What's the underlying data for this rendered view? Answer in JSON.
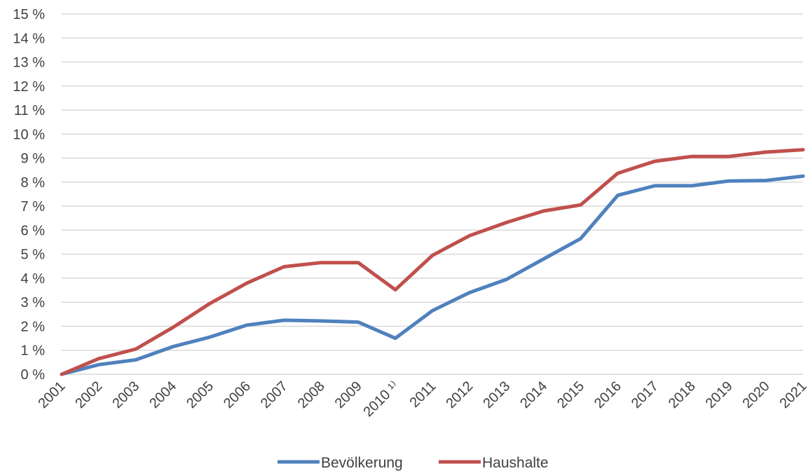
{
  "chart_data": {
    "type": "line",
    "title": "",
    "xlabel": "",
    "ylabel": "",
    "categories": [
      "2001",
      "2002",
      "2003",
      "2004",
      "2005",
      "2006",
      "2007",
      "2008",
      "2009",
      "2010 ¹⁾",
      "2011",
      "2012",
      "2013",
      "2014",
      "2015",
      "2016",
      "2017",
      "2018",
      "2019",
      "2020",
      "2021"
    ],
    "y_unit": "%",
    "ylim": [
      0,
      15
    ],
    "y_ticks": [
      "0 %",
      "1 %",
      "2 %",
      "3 %",
      "4 %",
      "5 %",
      "6 %",
      "7 %",
      "8 %",
      "9 %",
      "10 %",
      "11 %",
      "12 %",
      "13 %",
      "14 %",
      "15 %"
    ],
    "grid": true,
    "legend_position": "bottom",
    "series": [
      {
        "name": "Bevölkerung",
        "color": "#4F81BD",
        "values": [
          0.0,
          0.4,
          0.6,
          1.15,
          1.55,
          2.05,
          2.25,
          2.22,
          2.17,
          1.5,
          2.65,
          3.4,
          3.95,
          4.8,
          5.65,
          7.45,
          7.85,
          7.85,
          8.05,
          8.07,
          8.25
        ]
      },
      {
        "name": "Haushalte",
        "color": "#C0504D",
        "values": [
          0.0,
          0.65,
          1.05,
          1.95,
          2.95,
          3.8,
          4.48,
          4.65,
          4.65,
          3.52,
          4.95,
          5.77,
          6.32,
          6.8,
          7.05,
          8.37,
          8.87,
          9.07,
          9.07,
          9.25,
          9.35
        ]
      }
    ]
  }
}
